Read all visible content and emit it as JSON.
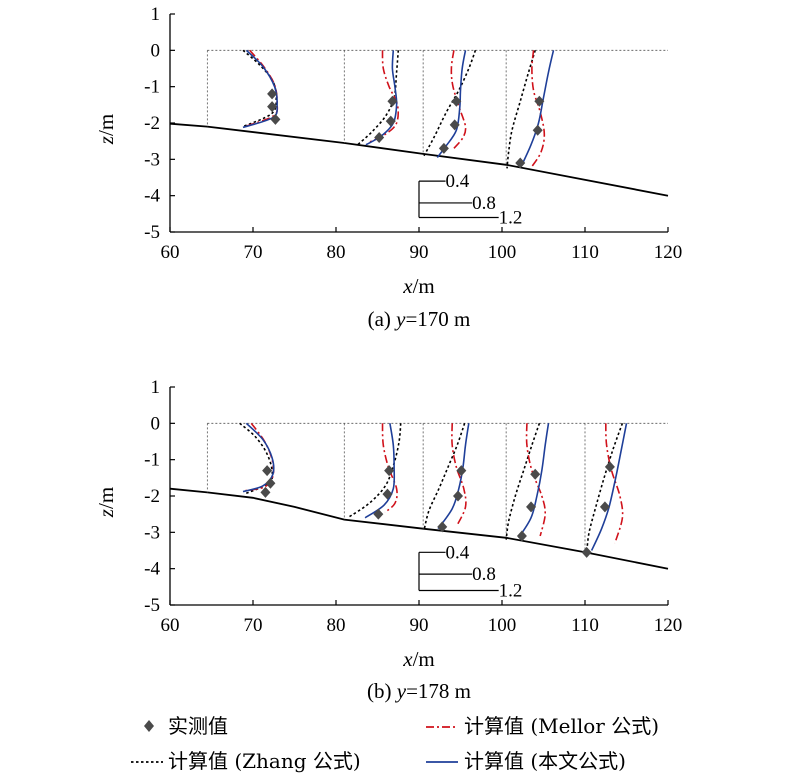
{
  "figure": {
    "legend": {
      "measured": "实测值",
      "mellor": "计算值 (Mellor 公式)",
      "zhang": "计算值 (Zhang 公式)",
      "proposed": "计算值 (本文公式)"
    },
    "colors": {
      "measured": "#4a4a4a",
      "zhang": "#000000",
      "mellor": "#d0121b",
      "proposed": "#1f3f99",
      "bed": "#000000",
      "reference": "#555555"
    }
  },
  "chart_data": [
    {
      "type": "line",
      "caption_prefix": "(a) ",
      "caption_var": "y",
      "caption_value": "=170 m",
      "xlabel": "x/m",
      "ylabel": "z/m",
      "xlim": [
        60,
        120
      ],
      "ylim": [
        -5,
        1
      ],
      "xticks": [
        "60",
        "70",
        "80",
        "90",
        "100",
        "110",
        "120"
      ],
      "yticks": [
        "1",
        "0",
        "-1",
        "-2",
        "-3",
        "-4",
        "-5"
      ],
      "grid": false,
      "scale_bar": {
        "labels": [
          "0.4",
          "0.8",
          "1.2"
        ],
        "x0": 90,
        "z": [
          -3.6,
          -4.2,
          -4.6
        ]
      },
      "bed_profile": [
        [
          60,
          -2.02
        ],
        [
          64.5,
          -2.1
        ],
        [
          81,
          -2.55
        ],
        [
          90.5,
          -2.85
        ],
        [
          100.5,
          -3.15
        ],
        [
          120,
          -4.0
        ]
      ],
      "profiles": [
        {
          "x0": 64.5,
          "z_bottom": -2.1,
          "measured": [
            [
              72.3,
              -1.2
            ],
            [
              72.3,
              -1.55
            ],
            [
              72.7,
              -1.9
            ]
          ],
          "zhang": [
            [
              68.8,
              0.0
            ],
            [
              70.8,
              -0.4
            ],
            [
              72.4,
              -0.85
            ],
            [
              72.8,
              -1.35
            ],
            [
              72.2,
              -1.75
            ],
            [
              68.8,
              -2.1
            ]
          ],
          "mellor": [
            [
              69.6,
              0.0
            ],
            [
              71.3,
              -0.45
            ],
            [
              72.6,
              -0.95
            ],
            [
              72.9,
              -1.45
            ],
            [
              72.5,
              -1.8
            ],
            [
              69.0,
              -2.1
            ]
          ],
          "proposed": [
            [
              69.2,
              0.0
            ],
            [
              71.2,
              -0.45
            ],
            [
              72.6,
              -1.0
            ],
            [
              72.9,
              -1.5
            ],
            [
              72.4,
              -1.85
            ],
            [
              68.8,
              -2.12
            ]
          ]
        },
        {
          "x0": 81,
          "z_bottom": -2.55,
          "measured": [
            [
              86.8,
              -1.4
            ],
            [
              86.6,
              -1.95
            ],
            [
              85.2,
              -2.4
            ]
          ],
          "zhang": [
            [
              87.5,
              0.0
            ],
            [
              87.3,
              -0.6
            ],
            [
              87.0,
              -1.3
            ],
            [
              86.0,
              -1.8
            ],
            [
              84.3,
              -2.25
            ],
            [
              82.6,
              -2.6
            ]
          ],
          "mellor": [
            [
              85.6,
              0.0
            ],
            [
              85.7,
              -0.5
            ],
            [
              86.4,
              -1.0
            ],
            [
              87.4,
              -1.5
            ],
            [
              87.3,
              -2.0
            ],
            [
              86.0,
              -2.3
            ],
            [
              83.8,
              -2.55
            ]
          ],
          "proposed": [
            [
              86.9,
              0.0
            ],
            [
              86.8,
              -0.5
            ],
            [
              87.1,
              -1.0
            ],
            [
              87.3,
              -1.5
            ],
            [
              86.9,
              -2.0
            ],
            [
              85.5,
              -2.35
            ],
            [
              83.6,
              -2.6
            ]
          ]
        },
        {
          "x0": 90.5,
          "z_bottom": -2.85,
          "measured": [
            [
              94.5,
              -1.4
            ],
            [
              94.3,
              -2.05
            ],
            [
              93.0,
              -2.7
            ]
          ],
          "zhang": [
            [
              96.8,
              0.0
            ],
            [
              96.0,
              -0.5
            ],
            [
              94.8,
              -1.1
            ],
            [
              93.3,
              -1.7
            ],
            [
              91.8,
              -2.4
            ],
            [
              90.6,
              -2.9
            ]
          ],
          "mellor": [
            [
              94.2,
              0.0
            ],
            [
              93.9,
              -0.5
            ],
            [
              94.1,
              -1.0
            ],
            [
              94.9,
              -1.6
            ],
            [
              95.6,
              -2.1
            ],
            [
              95.3,
              -2.4
            ],
            [
              94.2,
              -2.7
            ]
          ],
          "proposed": [
            [
              95.6,
              0.0
            ],
            [
              95.2,
              -0.5
            ],
            [
              95.0,
              -1.1
            ],
            [
              94.9,
              -1.6
            ],
            [
              94.5,
              -2.2
            ],
            [
              93.2,
              -2.65
            ],
            [
              92.2,
              -2.95
            ]
          ]
        },
        {
          "x0": 100.5,
          "z_bottom": -3.15,
          "measured": [
            [
              104.5,
              -1.4
            ],
            [
              104.3,
              -2.2
            ],
            [
              102.2,
              -3.1
            ]
          ],
          "zhang": [
            [
              104.0,
              0.0
            ],
            [
              103.2,
              -0.6
            ],
            [
              102.2,
              -1.4
            ],
            [
              101.2,
              -2.2
            ],
            [
              100.8,
              -2.8
            ],
            [
              100.6,
              -3.25
            ]
          ],
          "mellor": [
            [
              103.8,
              0.0
            ],
            [
              103.6,
              -0.5
            ],
            [
              103.8,
              -1.1
            ],
            [
              104.6,
              -1.7
            ],
            [
              105.1,
              -2.3
            ],
            [
              104.7,
              -2.8
            ],
            [
              103.6,
              -3.2
            ]
          ],
          "proposed": [
            [
              106.2,
              0.0
            ],
            [
              105.6,
              -0.6
            ],
            [
              105.0,
              -1.3
            ],
            [
              104.4,
              -2.0
            ],
            [
              103.5,
              -2.6
            ],
            [
              102.3,
              -3.2
            ]
          ]
        }
      ]
    },
    {
      "type": "line",
      "caption_prefix": "(b) ",
      "caption_var": "y",
      "caption_value": "=178 m",
      "xlabel": "x/m",
      "ylabel": "z/m",
      "xlim": [
        60,
        120
      ],
      "ylim": [
        -5,
        1
      ],
      "xticks": [
        "60",
        "70",
        "80",
        "90",
        "100",
        "110",
        "120"
      ],
      "yticks": [
        "1",
        "0",
        "-1",
        "-2",
        "-3",
        "-4",
        "-5"
      ],
      "grid": false,
      "scale_bar": {
        "labels": [
          "0.4",
          "0.8",
          "1.2"
        ],
        "x0": 90,
        "z": [
          -3.55,
          -4.15,
          -4.6
        ]
      },
      "bed_profile": [
        [
          60,
          -1.8
        ],
        [
          64.5,
          -1.9
        ],
        [
          70,
          -2.05
        ],
        [
          75,
          -2.3
        ],
        [
          81,
          -2.65
        ],
        [
          90.5,
          -2.9
        ],
        [
          100.5,
          -3.15
        ],
        [
          110,
          -3.55
        ],
        [
          120,
          -4.0
        ]
      ],
      "profiles": [
        {
          "x0": 64.5,
          "z_bottom": -1.9,
          "measured": [
            [
              71.7,
              -1.3
            ],
            [
              72.1,
              -1.65
            ],
            [
              71.5,
              -1.9
            ]
          ],
          "zhang": [
            [
              68.4,
              0.0
            ],
            [
              70.2,
              -0.35
            ],
            [
              71.6,
              -0.8
            ],
            [
              72.3,
              -1.3
            ],
            [
              71.9,
              -1.65
            ],
            [
              68.9,
              -1.95
            ]
          ],
          "mellor": [
            [
              69.8,
              0.0
            ],
            [
              71.4,
              -0.5
            ],
            [
              72.3,
              -1.0
            ],
            [
              72.4,
              -1.45
            ],
            [
              71.4,
              -1.75
            ],
            [
              69.1,
              -1.85
            ]
          ],
          "proposed": [
            [
              69.2,
              0.0
            ],
            [
              71.2,
              -0.45
            ],
            [
              72.3,
              -0.95
            ],
            [
              72.4,
              -1.4
            ],
            [
              71.2,
              -1.72
            ],
            [
              68.8,
              -1.88
            ]
          ]
        },
        {
          "x0": 81,
          "z_bottom": -2.65,
          "measured": [
            [
              86.4,
              -1.3
            ],
            [
              86.2,
              -1.95
            ],
            [
              85.1,
              -2.5
            ]
          ],
          "zhang": [
            [
              87.8,
              0.0
            ],
            [
              87.6,
              -0.5
            ],
            [
              87.0,
              -1.1
            ],
            [
              86.0,
              -1.7
            ],
            [
              84.0,
              -2.2
            ],
            [
              81.4,
              -2.6
            ]
          ],
          "mellor": [
            [
              85.6,
              0.0
            ],
            [
              85.7,
              -0.6
            ],
            [
              86.3,
              -1.2
            ],
            [
              87.3,
              -1.8
            ],
            [
              87.1,
              -2.2
            ],
            [
              85.9,
              -2.45
            ]
          ],
          "proposed": [
            [
              86.5,
              0.0
            ],
            [
              86.9,
              -0.6
            ],
            [
              87.0,
              -1.2
            ],
            [
              86.9,
              -1.8
            ],
            [
              85.8,
              -2.25
            ],
            [
              83.5,
              -2.6
            ]
          ]
        },
        {
          "x0": 90.5,
          "z_bottom": -2.9,
          "measured": [
            [
              95.1,
              -1.3
            ],
            [
              94.7,
              -2.0
            ],
            [
              92.8,
              -2.85
            ]
          ],
          "zhang": [
            [
              95.5,
              0.0
            ],
            [
              94.6,
              -0.6
            ],
            [
              93.5,
              -1.2
            ],
            [
              92.4,
              -1.8
            ],
            [
              91.2,
              -2.4
            ],
            [
              90.6,
              -2.95
            ]
          ],
          "mellor": [
            [
              94.0,
              0.0
            ],
            [
              94.0,
              -0.6
            ],
            [
              94.5,
              -1.2
            ],
            [
              95.4,
              -1.8
            ],
            [
              95.6,
              -2.3
            ],
            [
              94.6,
              -2.8
            ]
          ],
          "proposed": [
            [
              96.0,
              0.0
            ],
            [
              95.6,
              -0.6
            ],
            [
              95.3,
              -1.2
            ],
            [
              94.8,
              -1.8
            ],
            [
              94.0,
              -2.35
            ],
            [
              92.3,
              -2.9
            ]
          ]
        },
        {
          "x0": 100.5,
          "z_bottom": -3.15,
          "measured": [
            [
              104.0,
              -1.4
            ],
            [
              103.5,
              -2.3
            ],
            [
              102.4,
              -3.1
            ]
          ],
          "zhang": [
            [
              104.5,
              0.0
            ],
            [
              103.6,
              -0.6
            ],
            [
              102.6,
              -1.3
            ],
            [
              101.6,
              -2.0
            ],
            [
              100.8,
              -2.7
            ],
            [
              100.5,
              -3.2
            ]
          ],
          "mellor": [
            [
              103.0,
              0.0
            ],
            [
              103.0,
              -0.6
            ],
            [
              103.6,
              -1.3
            ],
            [
              104.8,
              -2.0
            ],
            [
              105.2,
              -2.5
            ],
            [
              104.6,
              -3.1
            ]
          ],
          "proposed": [
            [
              105.6,
              0.0
            ],
            [
              105.2,
              -0.6
            ],
            [
              104.8,
              -1.3
            ],
            [
              104.2,
              -2.0
            ],
            [
              103.5,
              -2.6
            ],
            [
              102.0,
              -3.15
            ]
          ]
        },
        {
          "x0": 110,
          "z_bottom": -3.55,
          "measured": [
            [
              113.0,
              -1.2
            ],
            [
              112.4,
              -2.3
            ],
            [
              110.2,
              -3.55
            ]
          ],
          "zhang": [
            [
              114.5,
              0.0
            ],
            [
              113.4,
              -0.7
            ],
            [
              112.3,
              -1.5
            ],
            [
              111.3,
              -2.3
            ],
            [
              110.5,
              -3.0
            ],
            [
              110.2,
              -3.55
            ]
          ],
          "mellor": [
            [
              112.5,
              0.0
            ],
            [
              112.6,
              -0.6
            ],
            [
              113.2,
              -1.3
            ],
            [
              114.2,
              -2.0
            ],
            [
              114.5,
              -2.6
            ],
            [
              113.6,
              -3.3
            ]
          ],
          "proposed": [
            [
              115.0,
              0.0
            ],
            [
              114.4,
              -0.7
            ],
            [
              113.7,
              -1.5
            ],
            [
              112.9,
              -2.3
            ],
            [
              112.0,
              -2.9
            ],
            [
              110.8,
              -3.5
            ]
          ]
        }
      ]
    }
  ]
}
